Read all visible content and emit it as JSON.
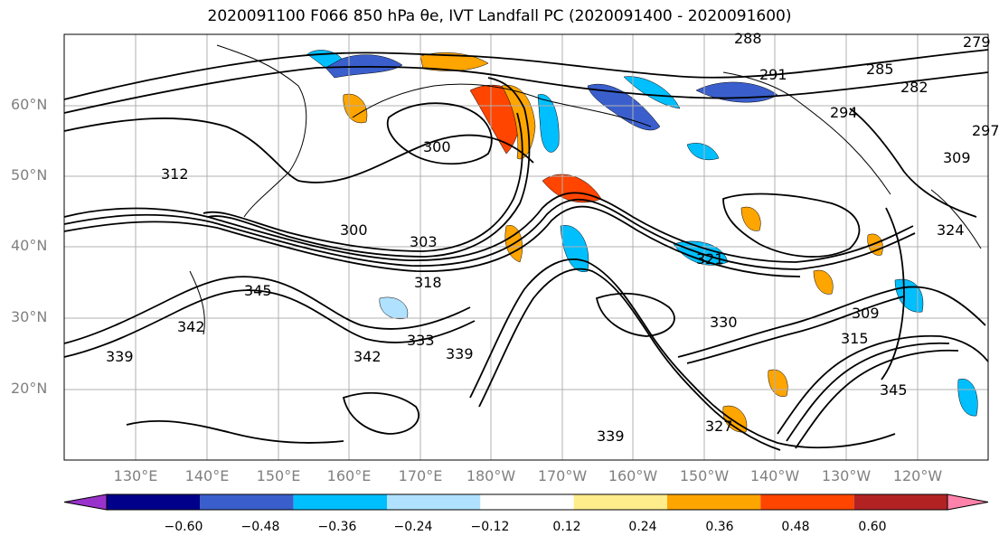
{
  "title": "2020091100 F066 850 hPa θe, IVT Landfall PC (2020091400 - 2020091600)",
  "map": {
    "lat_labels": [
      "60°N",
      "50°N",
      "40°N",
      "30°N",
      "20°N"
    ],
    "lon_labels": [
      "130°E",
      "140°E",
      "150°E",
      "160°E",
      "170°E",
      "180°W",
      "170°W",
      "160°W",
      "150°W",
      "140°W",
      "130°W",
      "120°W"
    ],
    "contour_labels": [
      "300",
      "303",
      "312",
      "300",
      "315",
      "318",
      "321",
      "342",
      "339",
      "333",
      "342",
      "345",
      "339",
      "330",
      "345",
      "309",
      "294",
      "291",
      "285",
      "282",
      "309",
      "324",
      "327",
      "339",
      "288",
      "279",
      "297"
    ]
  },
  "colorbar": {
    "tick_labels": [
      "−0.60",
      "−0.48",
      "−0.36",
      "−0.24",
      "−0.12",
      "0.12",
      "0.24",
      "0.36",
      "0.48",
      "0.60"
    ],
    "colors": [
      "#9932cc",
      "#00008b",
      "#3a5fcd",
      "#00bfff",
      "#b0e2ff",
      "#ffffff",
      "#ffec8b",
      "#ffa500",
      "#ff4500",
      "#b22222",
      "#ff82ab"
    ]
  }
}
